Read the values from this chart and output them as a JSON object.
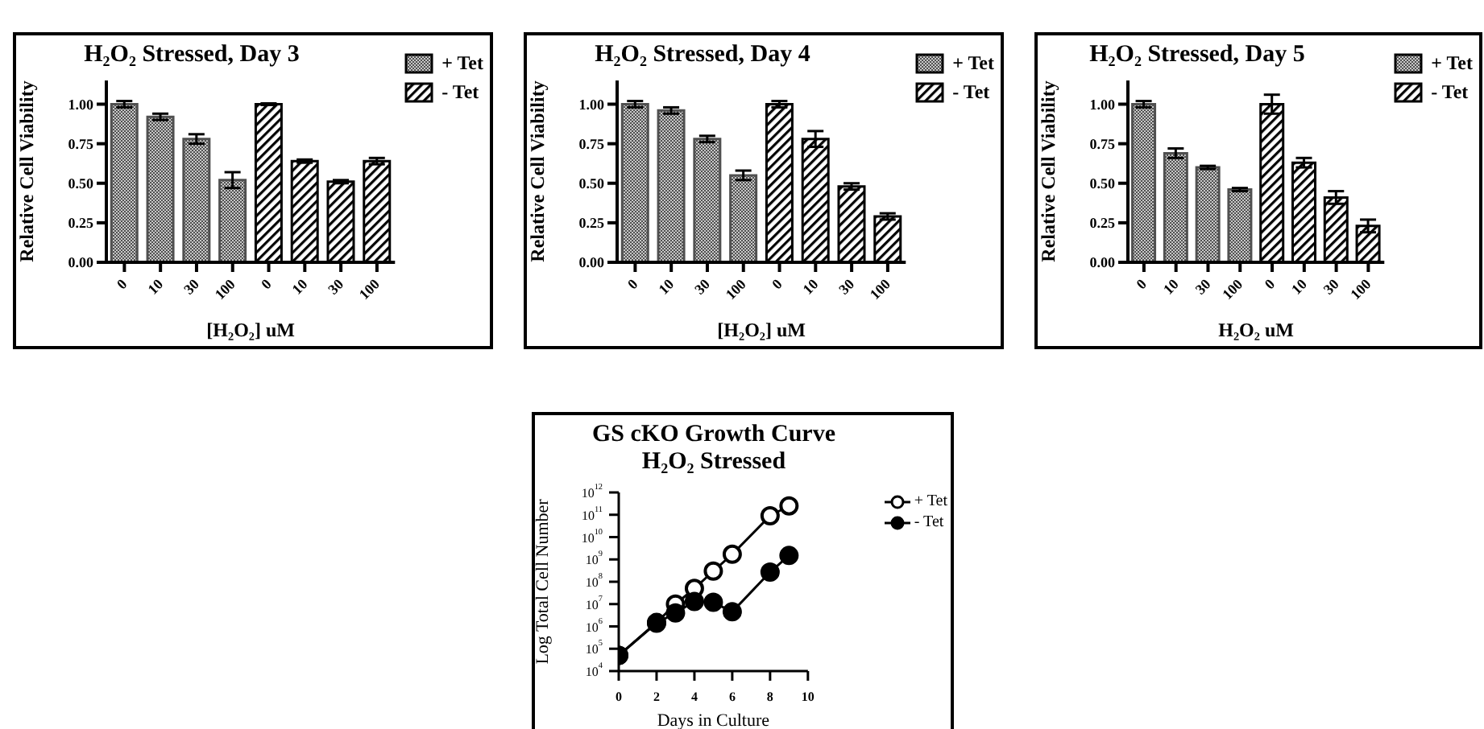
{
  "chart_data": [
    {
      "type": "bar",
      "title": "H₂O₂ Stressed, Day 3",
      "xlabel": "[H₂O₂] uM",
      "ylabel": "Relative Cell Viability",
      "categories": [
        "0",
        "10",
        "30",
        "100",
        "0",
        "10",
        "30",
        "100"
      ],
      "ylim": [
        0,
        1.15
      ],
      "yticks": [
        {
          "value": 0,
          "label": "0.00"
        },
        {
          "value": 0.25,
          "label": "0.25"
        },
        {
          "value": 0.5,
          "label": "0.50"
        },
        {
          "value": 0.75,
          "label": "0.75"
        },
        {
          "value": 1,
          "label": "1.00"
        }
      ],
      "legend": "top right",
      "series": [
        {
          "name": "+ Tet",
          "color": "#505050",
          "values": [
            1.0,
            0.92,
            0.78,
            0.52,
            null,
            null,
            null,
            null
          ],
          "errors": [
            0.02,
            0.02,
            0.03,
            0.05,
            null,
            null,
            null,
            null
          ]
        },
        {
          "name": "- Tet",
          "color": "#000000",
          "values": [
            null,
            null,
            null,
            null,
            1.0,
            0.64,
            0.51,
            0.64
          ],
          "errors": [
            null,
            null,
            null,
            null,
            0.005,
            0.01,
            0.01,
            0.02
          ]
        }
      ]
    },
    {
      "type": "bar",
      "title": "H₂O₂ Stressed, Day 4",
      "xlabel": "[H₂O₂] uM",
      "ylabel": "Relative Cell Viability",
      "categories": [
        "0",
        "10",
        "30",
        "100",
        "0",
        "10",
        "30",
        "100"
      ],
      "ylim": [
        0,
        1.15
      ],
      "yticks": [
        {
          "value": 0,
          "label": "0.00"
        },
        {
          "value": 0.25,
          "label": "0.25"
        },
        {
          "value": 0.5,
          "label": "0.50"
        },
        {
          "value": 0.75,
          "label": "0.75"
        },
        {
          "value": 1,
          "label": "1.00"
        }
      ],
      "legend": "top right",
      "series": [
        {
          "name": "+ Tet",
          "color": "#505050",
          "values": [
            1.0,
            0.96,
            0.78,
            0.55,
            null,
            null,
            null,
            null
          ],
          "errors": [
            0.02,
            0.02,
            0.02,
            0.03,
            null,
            null,
            null,
            null
          ]
        },
        {
          "name": "- Tet",
          "color": "#000000",
          "values": [
            null,
            null,
            null,
            null,
            1.0,
            0.78,
            0.48,
            0.29
          ],
          "errors": [
            null,
            null,
            null,
            null,
            0.02,
            0.05,
            0.02,
            0.02
          ]
        }
      ]
    },
    {
      "type": "bar",
      "title": "H₂O₂ Stressed, Day 5",
      "xlabel": "H₂O₂ uM",
      "ylabel": "Relative Cell Viability",
      "categories": [
        "0",
        "10",
        "30",
        "100",
        "0",
        "10",
        "30",
        "100"
      ],
      "ylim": [
        0,
        1.15
      ],
      "yticks": [
        {
          "value": 0,
          "label": "0.00"
        },
        {
          "value": 0.25,
          "label": "0.25"
        },
        {
          "value": 0.5,
          "label": "0.50"
        },
        {
          "value": 0.75,
          "label": "0.75"
        },
        {
          "value": 1,
          "label": "1.00"
        }
      ],
      "legend": "top right",
      "series": [
        {
          "name": "+ Tet",
          "color": "#505050",
          "values": [
            1.0,
            0.69,
            0.6,
            0.46,
            null,
            null,
            null,
            null
          ],
          "errors": [
            0.02,
            0.03,
            0.01,
            0.01,
            null,
            null,
            null,
            null
          ]
        },
        {
          "name": "- Tet",
          "color": "#000000",
          "values": [
            null,
            null,
            null,
            null,
            1.0,
            0.63,
            0.41,
            0.23
          ],
          "errors": [
            null,
            null,
            null,
            null,
            0.06,
            0.03,
            0.04,
            0.04
          ]
        }
      ]
    },
    {
      "type": "line",
      "title": "GS cKO Growth Curve",
      "subtitle": "H₂O₂ Stressed",
      "xlabel": "Days in Culture",
      "ylabel": "Log Total Cell Number",
      "log": "y",
      "marker": "circle",
      "legend": "top right",
      "x": [
        0,
        2,
        3,
        4,
        5,
        6,
        8,
        9
      ],
      "xlim": [
        0,
        10
      ],
      "xticks": [
        0,
        2,
        4,
        6,
        8,
        10
      ],
      "ylim": [
        10000,
        1000000000000
      ],
      "yticks": [
        {
          "value": 10000,
          "label": "10$^{4}$"
        },
        {
          "value": 100000,
          "label": "10$^{5}$"
        },
        {
          "value": 1000000,
          "label": "10$^{6}$"
        },
        {
          "value": 10000000,
          "label": "10$^{7}$"
        },
        {
          "value": 100000000,
          "label": "10$^{8}$"
        },
        {
          "value": 1000000000,
          "label": "10$^{9}$"
        },
        {
          "value": 10000000000,
          "label": "10$^{10}$"
        },
        {
          "value": 100000000000,
          "label": "10$^{11}$"
        },
        {
          "value": 1000000000000,
          "label": "10$^{12}$"
        }
      ],
      "series": [
        {
          "name": "+ Tet",
          "color": "#000000",
          "values": [
            50000,
            1500000,
            10000000,
            50000000,
            300000000,
            1700000000,
            90000000000,
            250000000000
          ]
        },
        {
          "name": "- Tet",
          "color": "#000000",
          "values": [
            50000,
            1400000,
            4000000,
            13000000,
            12000000,
            4500000,
            270000000,
            1500000000
          ]
        }
      ]
    }
  ]
}
